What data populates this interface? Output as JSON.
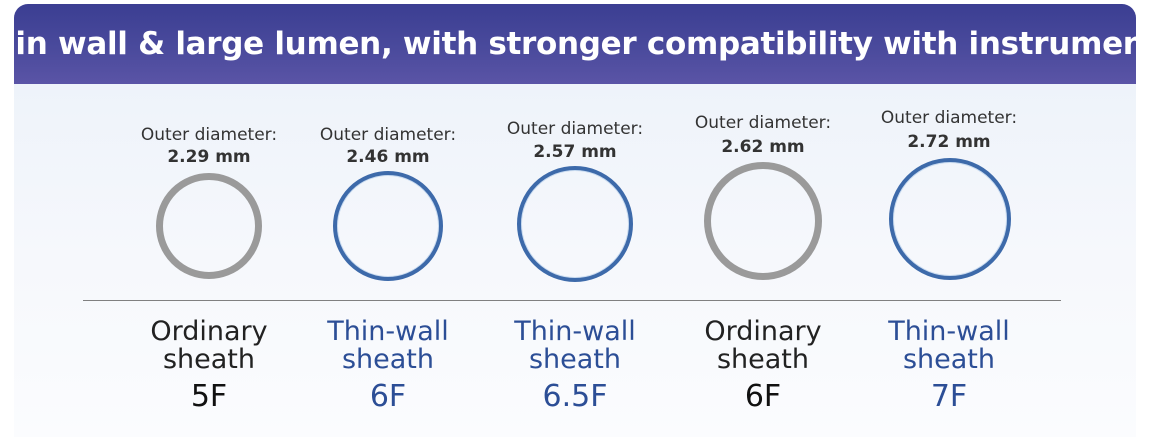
{
  "banner": {
    "title": "Thin wall & large lumen, with stronger compatibility with instruments"
  },
  "colors": {
    "banner": "#4a4a9c",
    "ordinary_ring": "#9a9a9a",
    "thin_wall_ring": "#3d6aaa",
    "thin_wall_text": "#2c4e96"
  },
  "sheaths": [
    {
      "od_label": "Outer diameter:",
      "od_value": "2.29 mm",
      "name_line1": "Ordinary",
      "name_line2": "sheath",
      "size": "5F",
      "kind": "ordinary"
    },
    {
      "od_label": "Outer diameter:",
      "od_value": "2.46 mm",
      "name_line1": "Thin-wall",
      "name_line2": "sheath",
      "size": "6F",
      "kind": "thin-wall"
    },
    {
      "od_label": "Outer diameter:",
      "od_value": "2.57 mm",
      "name_line1": "Thin-wall",
      "name_line2": "sheath",
      "size": "6.5F",
      "kind": "thin-wall"
    },
    {
      "od_label": "Outer diameter:",
      "od_value": "2.62 mm",
      "name_line1": "Ordinary",
      "name_line2": "sheath",
      "size": "6F",
      "kind": "ordinary"
    },
    {
      "od_label": "Outer diameter:",
      "od_value": "2.72 mm",
      "name_line1": "Thin-wall",
      "name_line2": "sheath",
      "size": "7F",
      "kind": "thin-wall"
    }
  ]
}
